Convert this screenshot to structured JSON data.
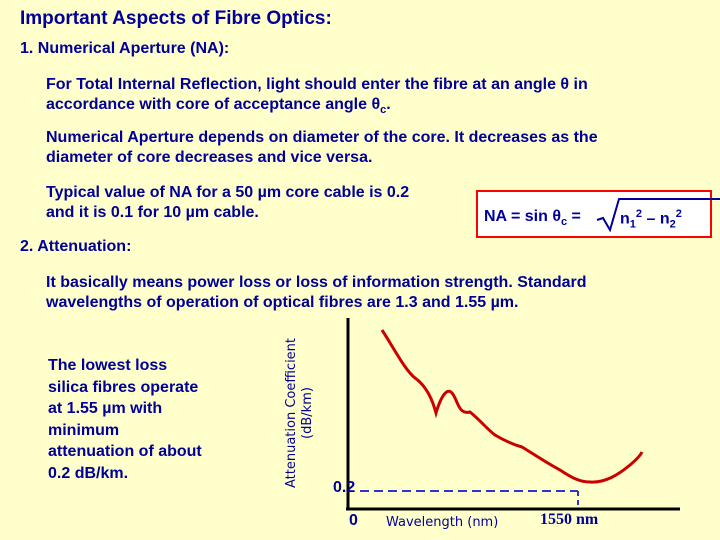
{
  "title": "Important Aspects of Fibre Optics:",
  "section1": {
    "heading": "1.  Numerical Aperture (NA):",
    "para1_line1": "For Total Internal Reflection, light should enter the fibre at an angle θ in",
    "para1_line2_prefix": "accordance with core of acceptance angle θ",
    "para1_sub": "c",
    "para1_suffix": ".",
    "para2_line1": "Numerical Aperture depends on diameter of the core.  It decreases as the",
    "para2_line2": "diameter of core decreases and vice versa.",
    "para3_line1": "Typical value of NA for a 50 µm core cable is 0.2",
    "para3_line2": "and it is 0.1 for 10 µm cable."
  },
  "formula": {
    "lhs": "NA = sin θ",
    "lhs_sub": "c",
    "equals": " =",
    "n1": "n",
    "n1_sub": "1",
    "n1_sup": "2",
    "minus": " – n",
    "n2_sub": "2",
    "n2_sup": "2"
  },
  "section2": {
    "heading": "2.  Attenuation:",
    "para_line1": "It basically means power loss or loss of information strength.  Standard",
    "para_line2": "wavelengths of operation of optical fibres are 1.3 and 1.55 µm.",
    "side_lines": [
      "The lowest loss",
      "silica fibres operate",
      "at 1.55 µm with",
      "minimum",
      "attenuation of about",
      "0.2 dB/km."
    ]
  },
  "chart_data": {
    "type": "line",
    "ylabel_line1": "Attenuation Coefficient",
    "ylabel_line2": "(dB/km)",
    "xlabel": "Wavelength (nm)",
    "origin_label": "0",
    "y_tick": "0.2",
    "x_tick": "1550 nm",
    "colors": {
      "curve": "#cc0000",
      "axis": "#000000",
      "guide": "#3333cc"
    }
  }
}
